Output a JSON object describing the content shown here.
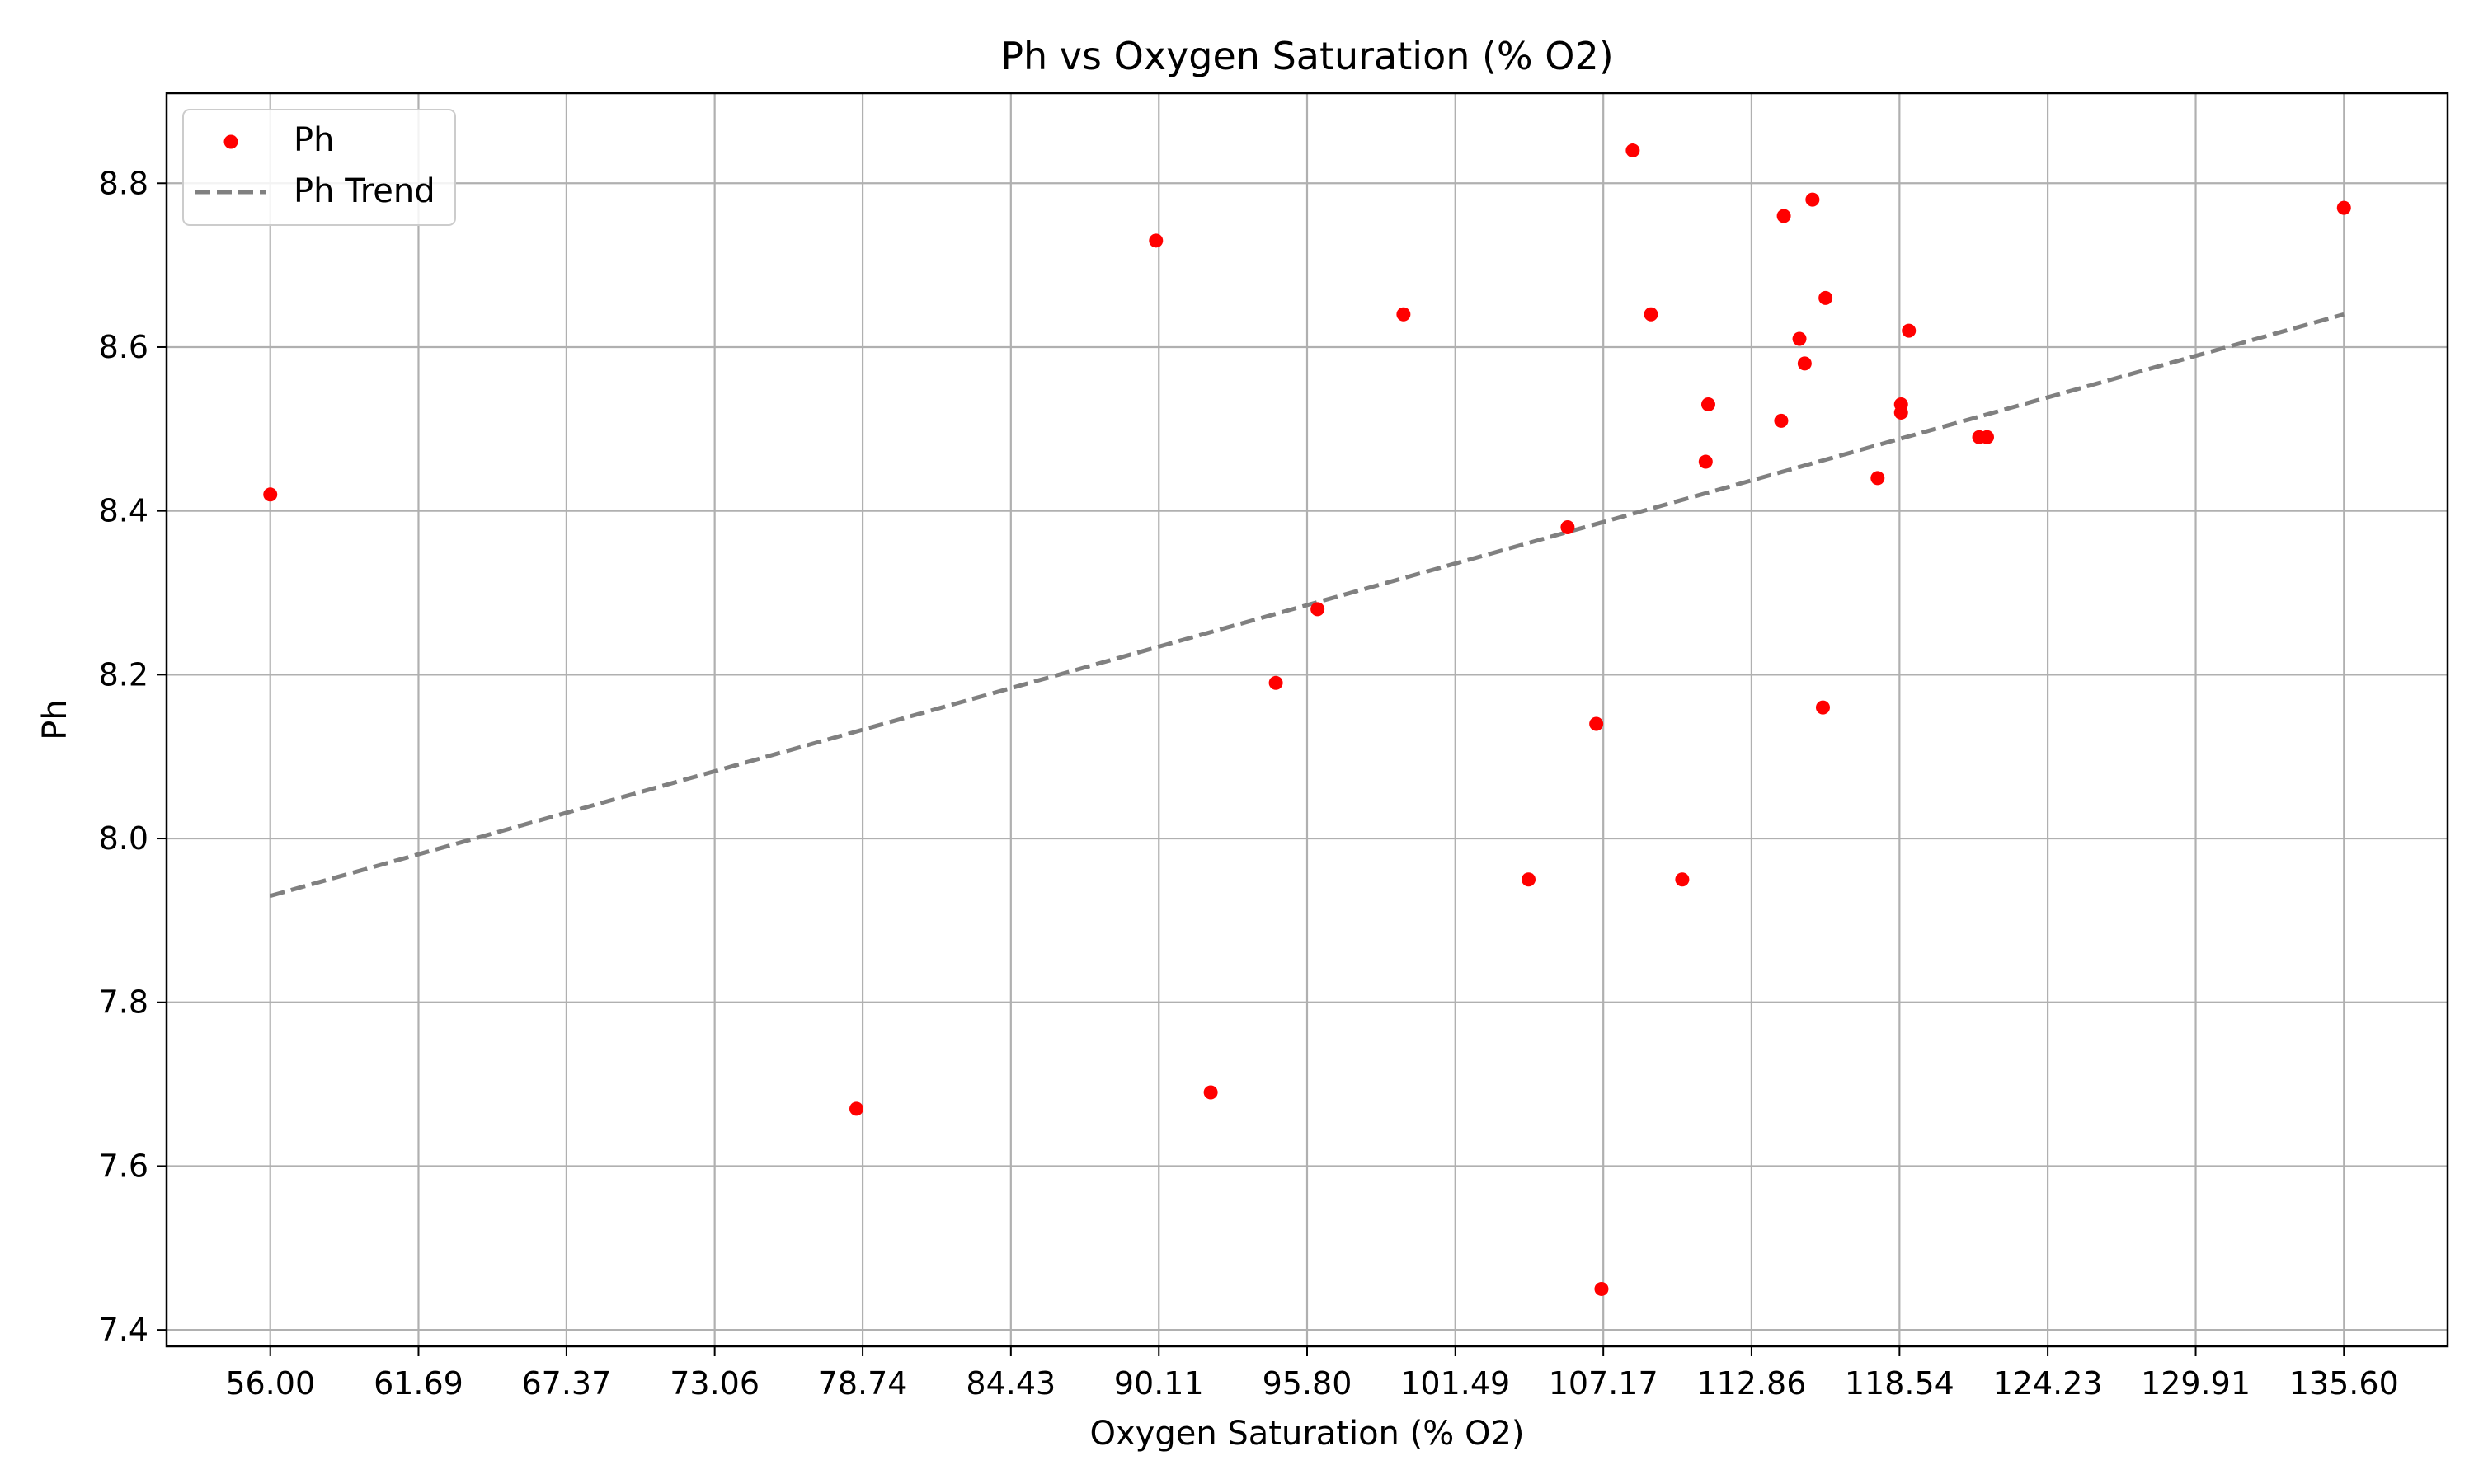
{
  "chart_data": {
    "type": "scatter",
    "title": "Ph vs Oxygen Saturation (% O2)",
    "xlabel": "Oxygen Saturation (% O2)",
    "ylabel": "Ph",
    "xlim": [
      52.02,
      139.58
    ],
    "ylim": [
      7.38,
      8.91
    ],
    "x_ticks": [
      56.0,
      61.69,
      67.37,
      73.06,
      78.74,
      84.43,
      90.11,
      95.8,
      101.49,
      107.17,
      112.86,
      118.54,
      124.23,
      129.91,
      135.6
    ],
    "x_tick_labels": [
      "56.00",
      "61.69",
      "67.37",
      "73.06",
      "78.74",
      "84.43",
      "90.11",
      "95.80",
      "101.49",
      "107.17",
      "112.86",
      "118.54",
      "124.23",
      "129.91",
      "135.60"
    ],
    "y_ticks": [
      7.4,
      7.6,
      7.8,
      8.0,
      8.2,
      8.4,
      8.6,
      8.8
    ],
    "y_tick_labels": [
      "7.4",
      "7.6",
      "7.8",
      "8.0",
      "8.2",
      "8.4",
      "8.6",
      "8.8"
    ],
    "grid": true,
    "legend_position": "top-left",
    "series": [
      {
        "name": "Ph",
        "kind": "scatter",
        "color": "#ff0000",
        "x": [
          56.0,
          78.5,
          90.0,
          92.1,
          94.6,
          96.2,
          99.5,
          104.3,
          105.8,
          106.9,
          107.1,
          108.3,
          109.0,
          110.2,
          111.1,
          111.2,
          114.0,
          114.1,
          114.7,
          114.9,
          115.2,
          115.6,
          115.7,
          117.7,
          118.6,
          118.6,
          118.9,
          121.6,
          121.9,
          135.6
        ],
        "y": [
          8.42,
          7.67,
          8.73,
          7.69,
          8.19,
          8.28,
          8.64,
          7.95,
          8.38,
          8.14,
          7.45,
          8.84,
          8.64,
          7.95,
          8.46,
          8.53,
          8.51,
          8.76,
          8.61,
          8.58,
          8.78,
          8.16,
          8.66,
          8.44,
          8.52,
          8.53,
          8.62,
          8.49,
          8.49,
          8.77
        ]
      },
      {
        "name": "Ph Trend",
        "kind": "line",
        "style": "dashed",
        "color": "#808080",
        "x": [
          56.0,
          135.6
        ],
        "y": [
          7.93,
          8.64
        ]
      }
    ]
  }
}
